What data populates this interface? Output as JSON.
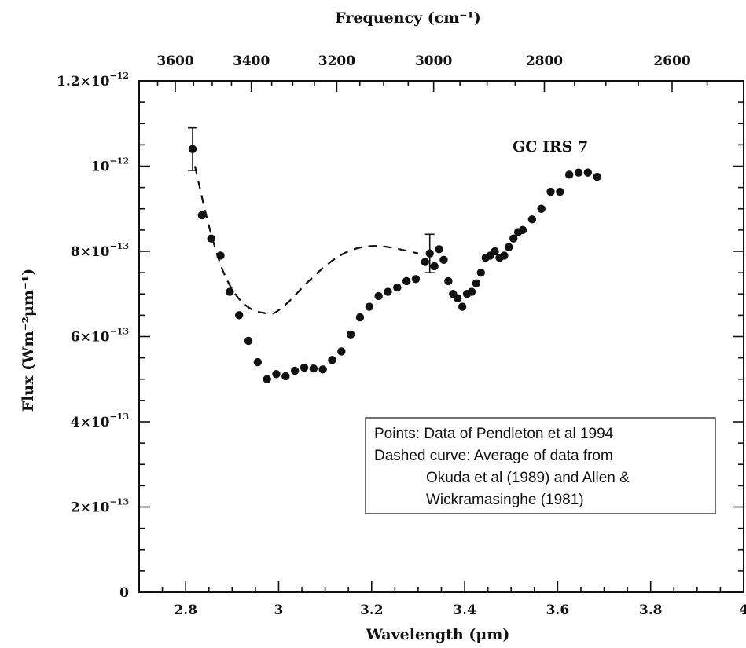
{
  "chart_data": {
    "type": "scatter",
    "xlabel": "Wavelength (μm)",
    "ylabel": "Flux (Wm⁻²μm⁻¹)",
    "top_axis_label": "Frequency (cm⁻¹)",
    "xlim": [
      2.7,
      4.0
    ],
    "ylim": [
      0,
      1.2e-12
    ],
    "x_ticks": [
      2.8,
      3,
      3.2,
      3.4,
      3.6,
      3.8,
      4
    ],
    "x_tick_labels": [
      "2.8",
      "3",
      "3.2",
      "3.4",
      "3.6",
      "3.8",
      "4"
    ],
    "y_ticks": [
      0,
      2e-13,
      4e-13,
      6e-13,
      8e-13,
      1e-12,
      1.2e-12
    ],
    "y_tick_labels": [
      {
        "mant": "0",
        "exp": ""
      },
      {
        "mant": "2×10",
        "exp": "−13"
      },
      {
        "mant": "4×10",
        "exp": "−13"
      },
      {
        "mant": "6×10",
        "exp": "−13"
      },
      {
        "mant": "8×10",
        "exp": "−13"
      },
      {
        "mant": "10",
        "exp": "−12"
      },
      {
        "mant": "1.2×10",
        "exp": "−12"
      }
    ],
    "top_ticks_cm": [
      3600,
      3400,
      3200,
      3000,
      2800,
      2600
    ],
    "top_tick_labels": [
      "3600",
      "3400",
      "3200",
      "3000",
      "2800",
      "2600"
    ],
    "annotation": "GC IRS 7",
    "legend_lines": [
      "Points: Data of Pendleton et al 1994",
      "Dashed curve:  Average of data from",
      "Okuda et al (1989) and Allen &",
      "Wickramasinghe (1981)"
    ],
    "series": [
      {
        "marker": "circle",
        "x": [
          2.815,
          2.835,
          2.855,
          2.875,
          2.895,
          2.915,
          2.935,
          2.955,
          2.975,
          2.995,
          3.015,
          3.035,
          3.055,
          3.075,
          3.095,
          3.115,
          3.135,
          3.155,
          3.175,
          3.195,
          3.215,
          3.235,
          3.255,
          3.275,
          3.295,
          3.315,
          3.325,
          3.335,
          3.345,
          3.355,
          3.365,
          3.375,
          3.385,
          3.395,
          3.405,
          3.415,
          3.425,
          3.435,
          3.445,
          3.455,
          3.465,
          3.475,
          3.485,
          3.495,
          3.505,
          3.515,
          3.525,
          3.545,
          3.565,
          3.585,
          3.605,
          3.625,
          3.645,
          3.665,
          3.685
        ],
        "y": [
          1.04e-12,
          8.85e-13,
          8.3e-13,
          7.9e-13,
          7.05e-13,
          6.5e-13,
          5.9e-13,
          5.4e-13,
          5e-13,
          5.12e-13,
          5.07e-13,
          5.2e-13,
          5.27e-13,
          5.25e-13,
          5.23e-13,
          5.45e-13,
          5.65e-13,
          6.05e-13,
          6.45e-13,
          6.7e-13,
          6.95e-13,
          7.05e-13,
          7.15e-13,
          7.3e-13,
          7.35e-13,
          7.75e-13,
          7.95e-13,
          7.65e-13,
          8.05e-13,
          7.8e-13,
          7.3e-13,
          7e-13,
          6.9e-13,
          6.7e-13,
          7e-13,
          7.05e-13,
          7.25e-13,
          7.5e-13,
          7.85e-13,
          7.9e-13,
          8e-13,
          7.85e-13,
          7.9e-13,
          8.1e-13,
          8.3e-13,
          8.45e-13,
          8.5e-13,
          8.75e-13,
          9e-13,
          9.4e-13,
          9.4e-13,
          9.8e-13,
          9.85e-13,
          9.85e-13,
          9.75e-13
        ],
        "err": [
          5e-14,
          0,
          0,
          0,
          0,
          0,
          0,
          0,
          0,
          0,
          0,
          0,
          0,
          0,
          0,
          0,
          0,
          0,
          0,
          0,
          0,
          0,
          0,
          0,
          0,
          0,
          4.5e-14,
          0,
          0,
          0,
          0,
          0,
          0,
          0,
          0,
          0,
          0,
          0,
          0,
          0,
          0,
          0,
          0,
          0,
          0,
          0,
          0,
          0,
          0,
          0,
          0,
          0,
          0,
          0,
          0
        ]
      },
      {
        "style": "dashed",
        "x": [
          2.82,
          2.85,
          2.88,
          2.91,
          2.94,
          2.97,
          2.99,
          3.02,
          3.06,
          3.1,
          3.14,
          3.18,
          3.22,
          3.26,
          3.3
        ],
        "y": [
          1e-12,
          8.6e-13,
          7.55e-13,
          6.95e-13,
          6.65e-13,
          6.55e-13,
          6.55e-13,
          6.8e-13,
          7.25e-13,
          7.65e-13,
          7.95e-13,
          8.1e-13,
          8.12e-13,
          8.05e-13,
          7.95e-13
        ]
      }
    ]
  }
}
